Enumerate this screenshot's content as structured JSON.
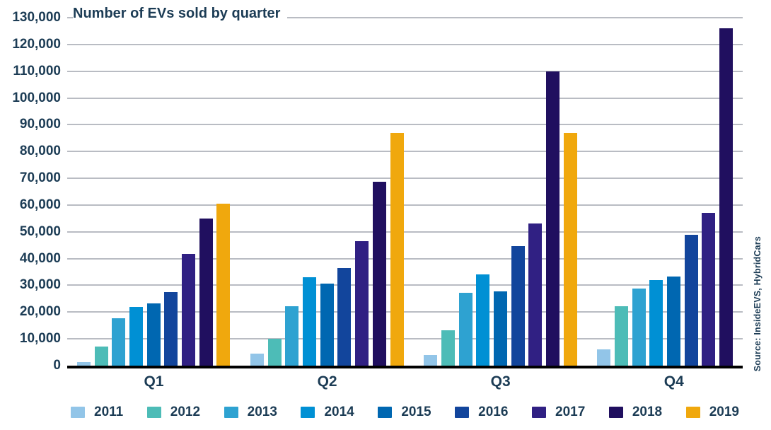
{
  "title": "Number of EVs sold by quarter",
  "source": "Source: InsideEVS, HybridCars",
  "colors": {
    "text": "#1c3c55",
    "gridline": "#b9bcc3",
    "axis": "#000000",
    "background": "#ffffff"
  },
  "chart_data": {
    "type": "bar",
    "title": "Number of EVs sold by quarter",
    "categories": [
      "Q1",
      "Q2",
      "Q3",
      "Q4"
    ],
    "series": [
      {
        "name": "2011",
        "color": "#92c5e8",
        "values": [
          1400,
          4500,
          3900,
          6000
        ]
      },
      {
        "name": "2012",
        "color": "#4dbcb7",
        "values": [
          7100,
          10100,
          13300,
          22300
        ]
      },
      {
        "name": "2013",
        "color": "#2ea2d1",
        "values": [
          17700,
          22300,
          27300,
          28700
        ]
      },
      {
        "name": "2014",
        "color": "#0090d4",
        "values": [
          22000,
          33100,
          34000,
          32000
        ]
      },
      {
        "name": "2015",
        "color": "#0067b1",
        "values": [
          23300,
          30700,
          27700,
          33400
        ]
      },
      {
        "name": "2016",
        "color": "#12459c",
        "values": [
          27500,
          36500,
          44600,
          48800
        ]
      },
      {
        "name": "2017",
        "color": "#302083",
        "values": [
          41800,
          46500,
          53100,
          57200
        ]
      },
      {
        "name": "2018",
        "color": "#200f5f",
        "values": [
          55000,
          68600,
          110000,
          126000
        ]
      },
      {
        "name": "2019",
        "color": "#f0a80d",
        "values": [
          60600,
          87000,
          87000,
          null
        ]
      }
    ],
    "ylim": [
      0,
      130000
    ],
    "y_tick_step": 10000,
    "y_tick_labels": [
      "0",
      "10,000",
      "20,000",
      "30,000",
      "40,000",
      "50,000",
      "60,000",
      "70,000",
      "80,000",
      "90,000",
      "100,000",
      "110,000",
      "120,000",
      "130,000"
    ],
    "xlabel": "",
    "ylabel": "",
    "grid": "horizontal",
    "legend_position": "bottom",
    "source": "Source: InsideEVS, HybridCars"
  }
}
